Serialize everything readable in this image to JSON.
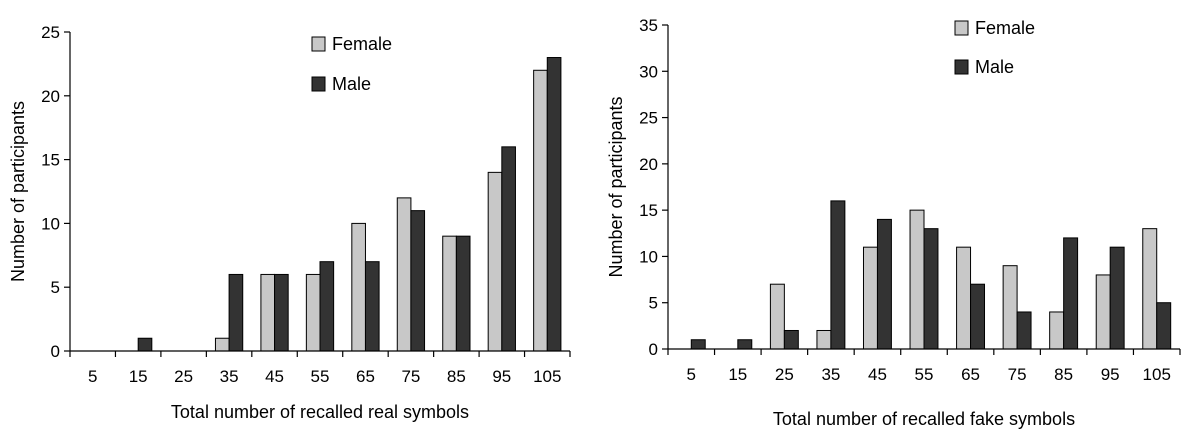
{
  "colors": {
    "female": "#c8c8c8",
    "male": "#333333",
    "stroke": "#000000"
  },
  "chart_data": [
    {
      "type": "bar",
      "title": "",
      "xlabel": "Total number of recalled real symbols",
      "ylabel": "Number of participants",
      "categories": [
        "5",
        "15",
        "25",
        "35",
        "45",
        "55",
        "65",
        "75",
        "85",
        "95",
        "105"
      ],
      "ylim": [
        0,
        25
      ],
      "yticks": [
        "0",
        "5",
        "10",
        "15",
        "20",
        "25"
      ],
      "legend_position": "top-right",
      "grid": false,
      "series": [
        {
          "name": "Female",
          "values": [
            0,
            0,
            0,
            1,
            6,
            6,
            10,
            12,
            9,
            14,
            22
          ]
        },
        {
          "name": "Male",
          "values": [
            0,
            1,
            0,
            6,
            6,
            7,
            7,
            11,
            9,
            16,
            23
          ]
        }
      ]
    },
    {
      "type": "bar",
      "title": "",
      "xlabel": "Total number of recalled fake symbols",
      "ylabel": "Number of participants",
      "categories": [
        "5",
        "15",
        "25",
        "35",
        "45",
        "55",
        "65",
        "75",
        "85",
        "95",
        "105"
      ],
      "ylim": [
        0,
        35
      ],
      "yticks": [
        "0",
        "5",
        "10",
        "15",
        "20",
        "25",
        "30",
        "35"
      ],
      "legend_position": "top-right",
      "grid": false,
      "series": [
        {
          "name": "Female",
          "values": [
            0,
            0,
            7,
            2,
            11,
            15,
            11,
            9,
            4,
            8,
            13
          ]
        },
        {
          "name": "Male",
          "values": [
            1,
            1,
            2,
            16,
            14,
            13,
            7,
            4,
            12,
            11,
            5
          ]
        }
      ]
    }
  ]
}
